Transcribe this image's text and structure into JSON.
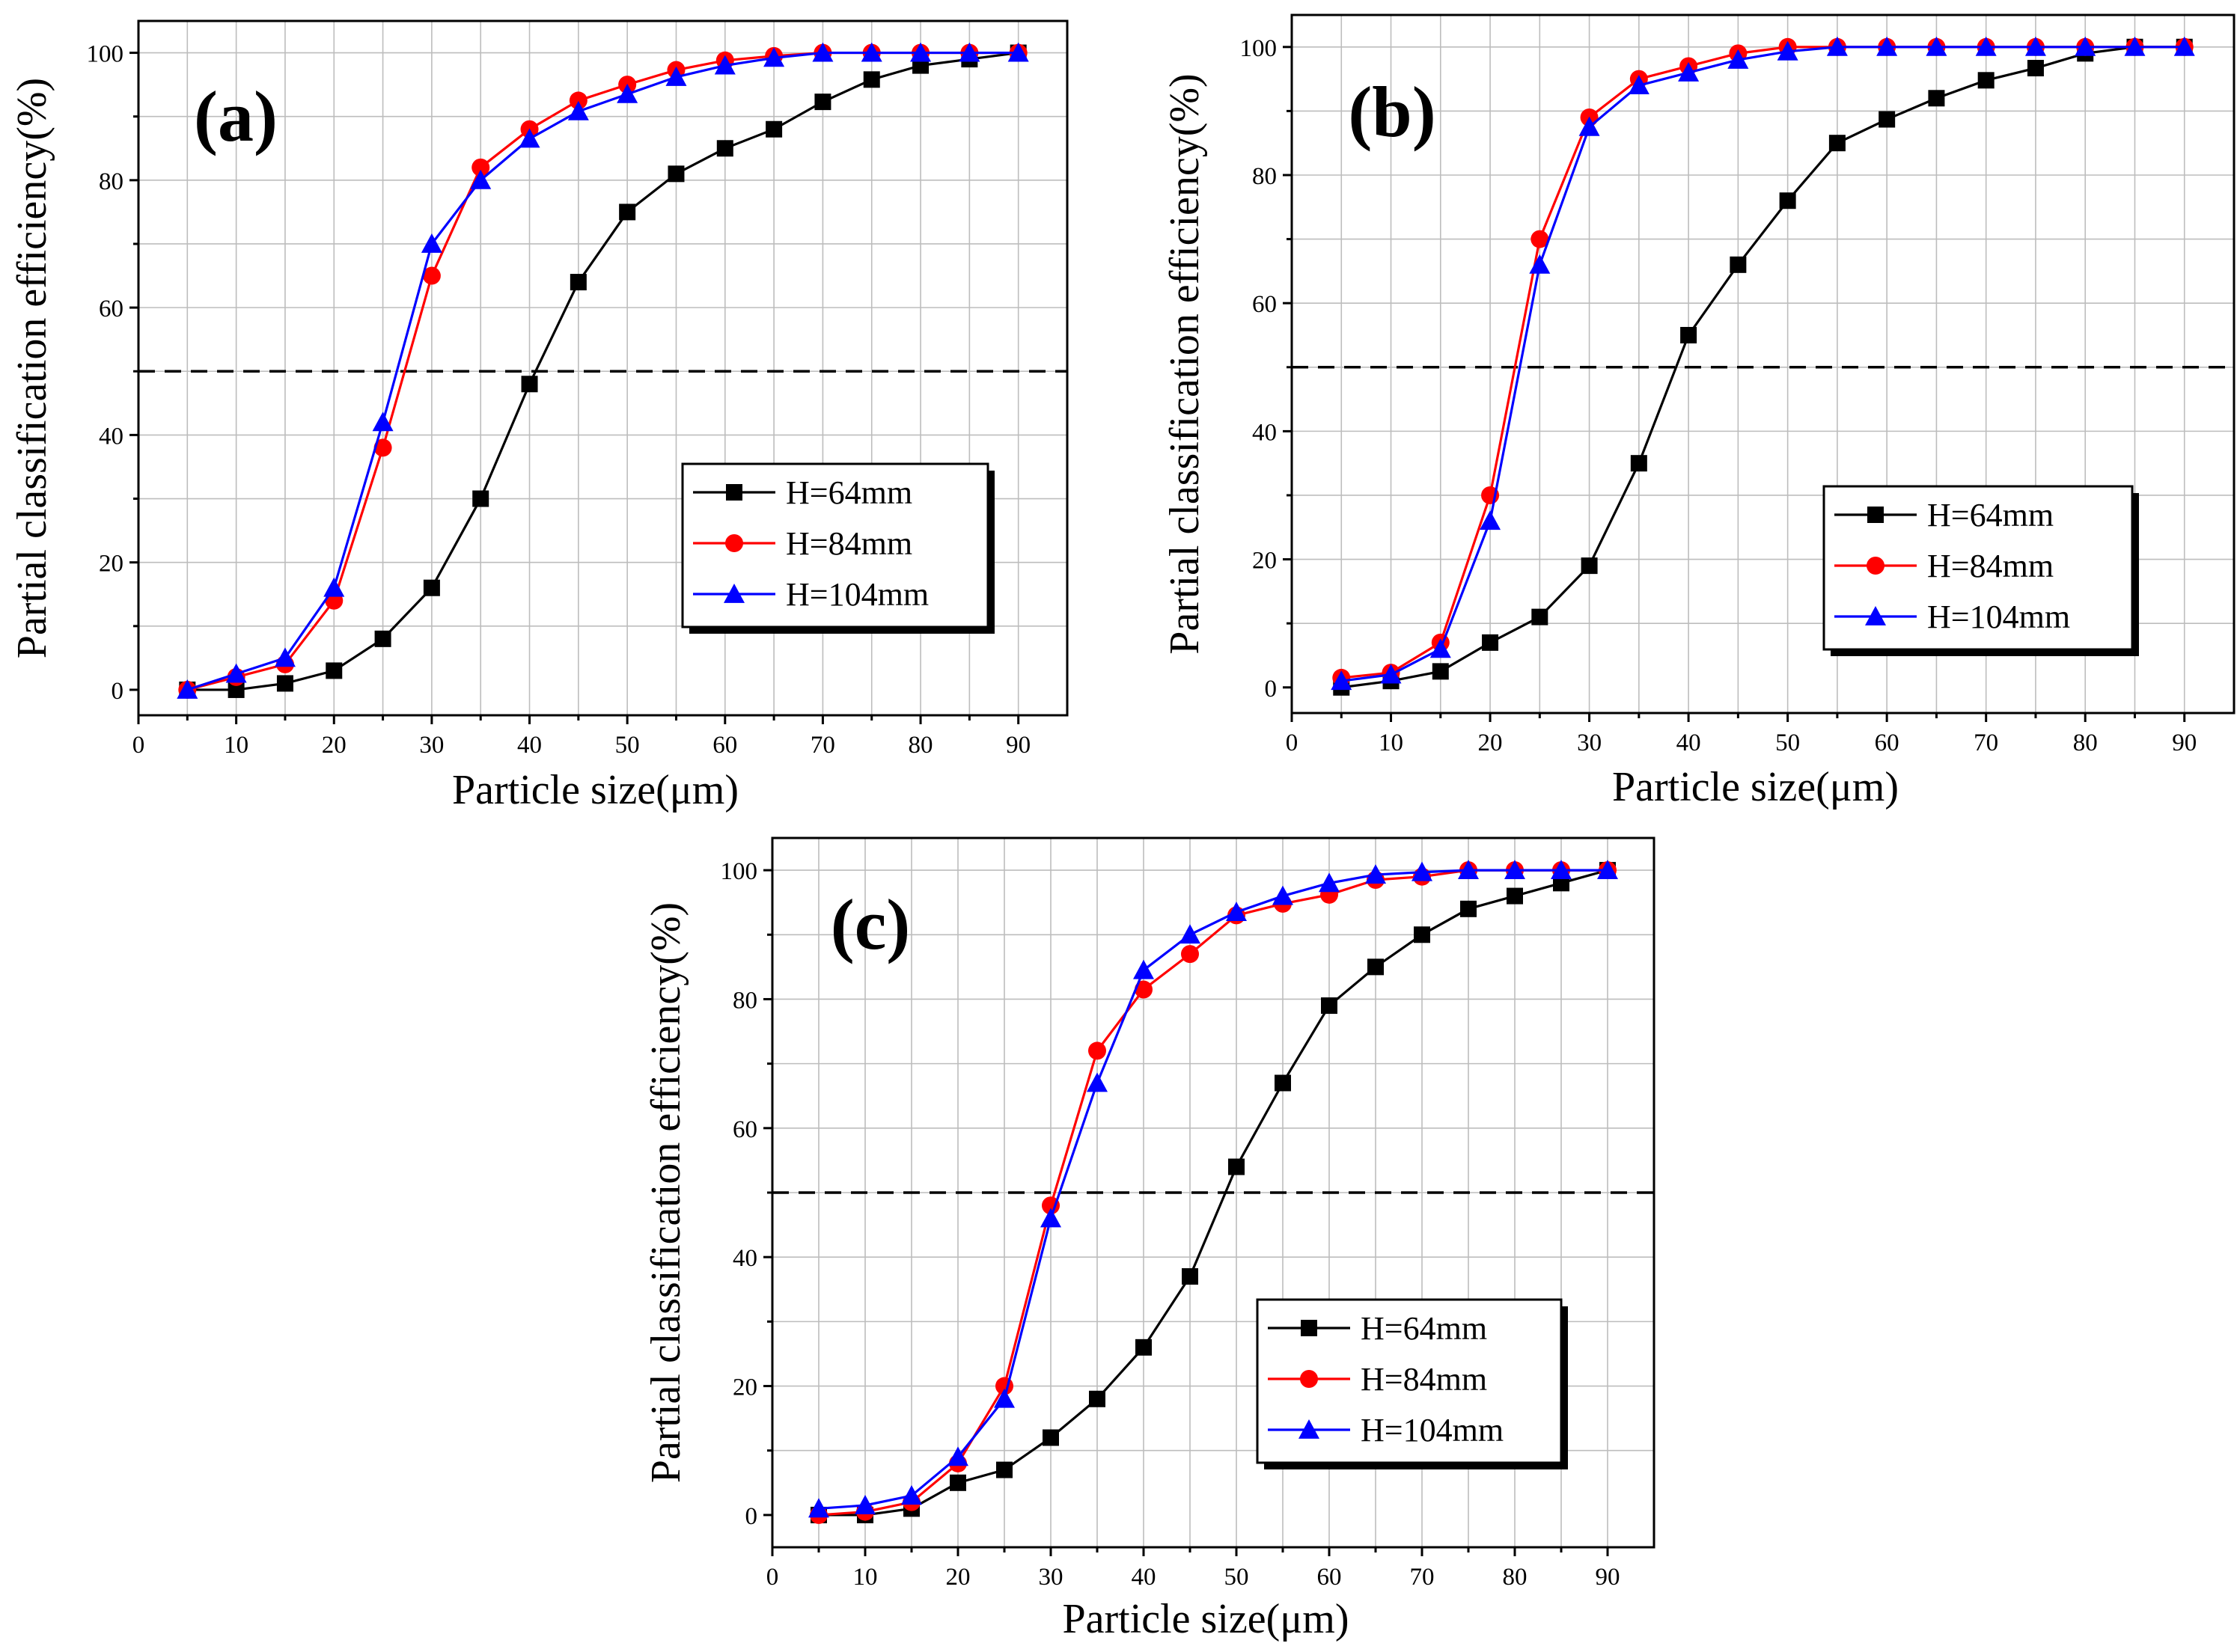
{
  "chart_data": [
    {
      "type": "line",
      "panel_label": "(a)",
      "xlabel": "Particle size(μm)",
      "ylabel": "Partial classification efficiency(%)",
      "xlim": [
        0,
        95
      ],
      "ylim": [
        -4,
        105
      ],
      "xticks": [
        0,
        10,
        20,
        30,
        40,
        50,
        60,
        70,
        80,
        90
      ],
      "yticks": [
        0,
        20,
        40,
        60,
        80,
        100
      ],
      "grid": true,
      "reference_line": 50,
      "legend_position": "lower-right",
      "x": [
        5,
        10,
        15,
        20,
        25,
        30,
        35,
        40,
        45,
        50,
        55,
        60,
        65,
        70,
        75,
        80,
        85,
        90
      ],
      "series": [
        {
          "name": "H=64mm",
          "color": "#000000",
          "marker": "square",
          "values": [
            0,
            0,
            1,
            3,
            8,
            16,
            30,
            48,
            64,
            75,
            81,
            85,
            88,
            92.3,
            95.8,
            98,
            99,
            100
          ]
        },
        {
          "name": "H=84mm",
          "color": "#ff0000",
          "marker": "circle",
          "values": [
            0,
            2,
            4,
            14,
            38,
            65,
            82,
            88,
            92.5,
            95,
            97.3,
            98.8,
            99.5,
            100,
            100,
            100,
            100,
            100
          ]
        },
        {
          "name": "H=104mm",
          "color": "#0000ff",
          "marker": "triangle",
          "values": [
            0,
            2.5,
            5,
            16,
            42,
            70,
            80,
            86.5,
            90.8,
            93.5,
            96.2,
            98,
            99.2,
            100,
            100,
            100,
            100,
            100
          ]
        }
      ]
    },
    {
      "type": "line",
      "panel_label": "(b)",
      "xlabel": "Particle size(μm)",
      "ylabel": "Partial classification efficiency(%)",
      "xlim": [
        0,
        95
      ],
      "ylim": [
        -4,
        105
      ],
      "xticks": [
        0,
        10,
        20,
        30,
        40,
        50,
        60,
        70,
        80,
        90
      ],
      "yticks": [
        0,
        20,
        40,
        60,
        80,
        100
      ],
      "grid": true,
      "reference_line": 50,
      "legend_position": "lower-right",
      "x": [
        5,
        10,
        15,
        20,
        25,
        30,
        35,
        40,
        45,
        50,
        55,
        60,
        65,
        70,
        75,
        80,
        85,
        90
      ],
      "series": [
        {
          "name": "H=64mm",
          "color": "#000000",
          "marker": "square",
          "values": [
            0,
            1,
            2.5,
            7,
            11,
            19,
            35,
            55,
            66,
            76,
            85,
            88.7,
            92,
            94.8,
            96.7,
            99,
            100,
            100
          ]
        },
        {
          "name": "H=84mm",
          "color": "#ff0000",
          "marker": "circle",
          "values": [
            1.5,
            2.3,
            7,
            30,
            70,
            89,
            95,
            97,
            99,
            100,
            100,
            100,
            100,
            100,
            100,
            100,
            100,
            100
          ]
        },
        {
          "name": "H=104mm",
          "color": "#0000ff",
          "marker": "triangle",
          "values": [
            1,
            2,
            6,
            26,
            66,
            87.5,
            94,
            96,
            98,
            99.3,
            100,
            100,
            100,
            100,
            100,
            100,
            100,
            100
          ]
        }
      ]
    },
    {
      "type": "line",
      "panel_label": "(c)",
      "xlabel": "Particle size(μm)",
      "ylabel": "Partial classification efficiency(%)",
      "xlim": [
        0,
        95
      ],
      "ylim": [
        -5,
        105
      ],
      "xticks": [
        0,
        10,
        20,
        30,
        40,
        50,
        60,
        70,
        80,
        90
      ],
      "yticks": [
        0,
        20,
        40,
        60,
        80,
        100
      ],
      "grid": true,
      "reference_line": 50,
      "legend_position": "lower-right",
      "x": [
        5,
        10,
        15,
        20,
        25,
        30,
        35,
        40,
        45,
        50,
        55,
        60,
        65,
        70,
        75,
        80,
        85,
        90
      ],
      "series": [
        {
          "name": "H=64mm",
          "color": "#000000",
          "marker": "square",
          "values": [
            0,
            0,
            1,
            5,
            7,
            12,
            18,
            26,
            37,
            54,
            67,
            79,
            85,
            90,
            94,
            96,
            98,
            100
          ]
        },
        {
          "name": "H=84mm",
          "color": "#ff0000",
          "marker": "circle",
          "values": [
            0,
            0.5,
            2,
            8,
            20,
            48,
            72,
            81.5,
            87,
            93,
            94.8,
            96.2,
            98.5,
            99,
            100,
            100,
            100,
            100
          ]
        },
        {
          "name": "H=104mm",
          "color": "#0000ff",
          "marker": "triangle",
          "values": [
            1,
            1.5,
            3,
            9,
            18,
            46,
            67,
            84.5,
            90,
            93.5,
            96,
            98,
            99.3,
            99.7,
            100,
            100,
            100,
            100
          ]
        }
      ]
    }
  ]
}
